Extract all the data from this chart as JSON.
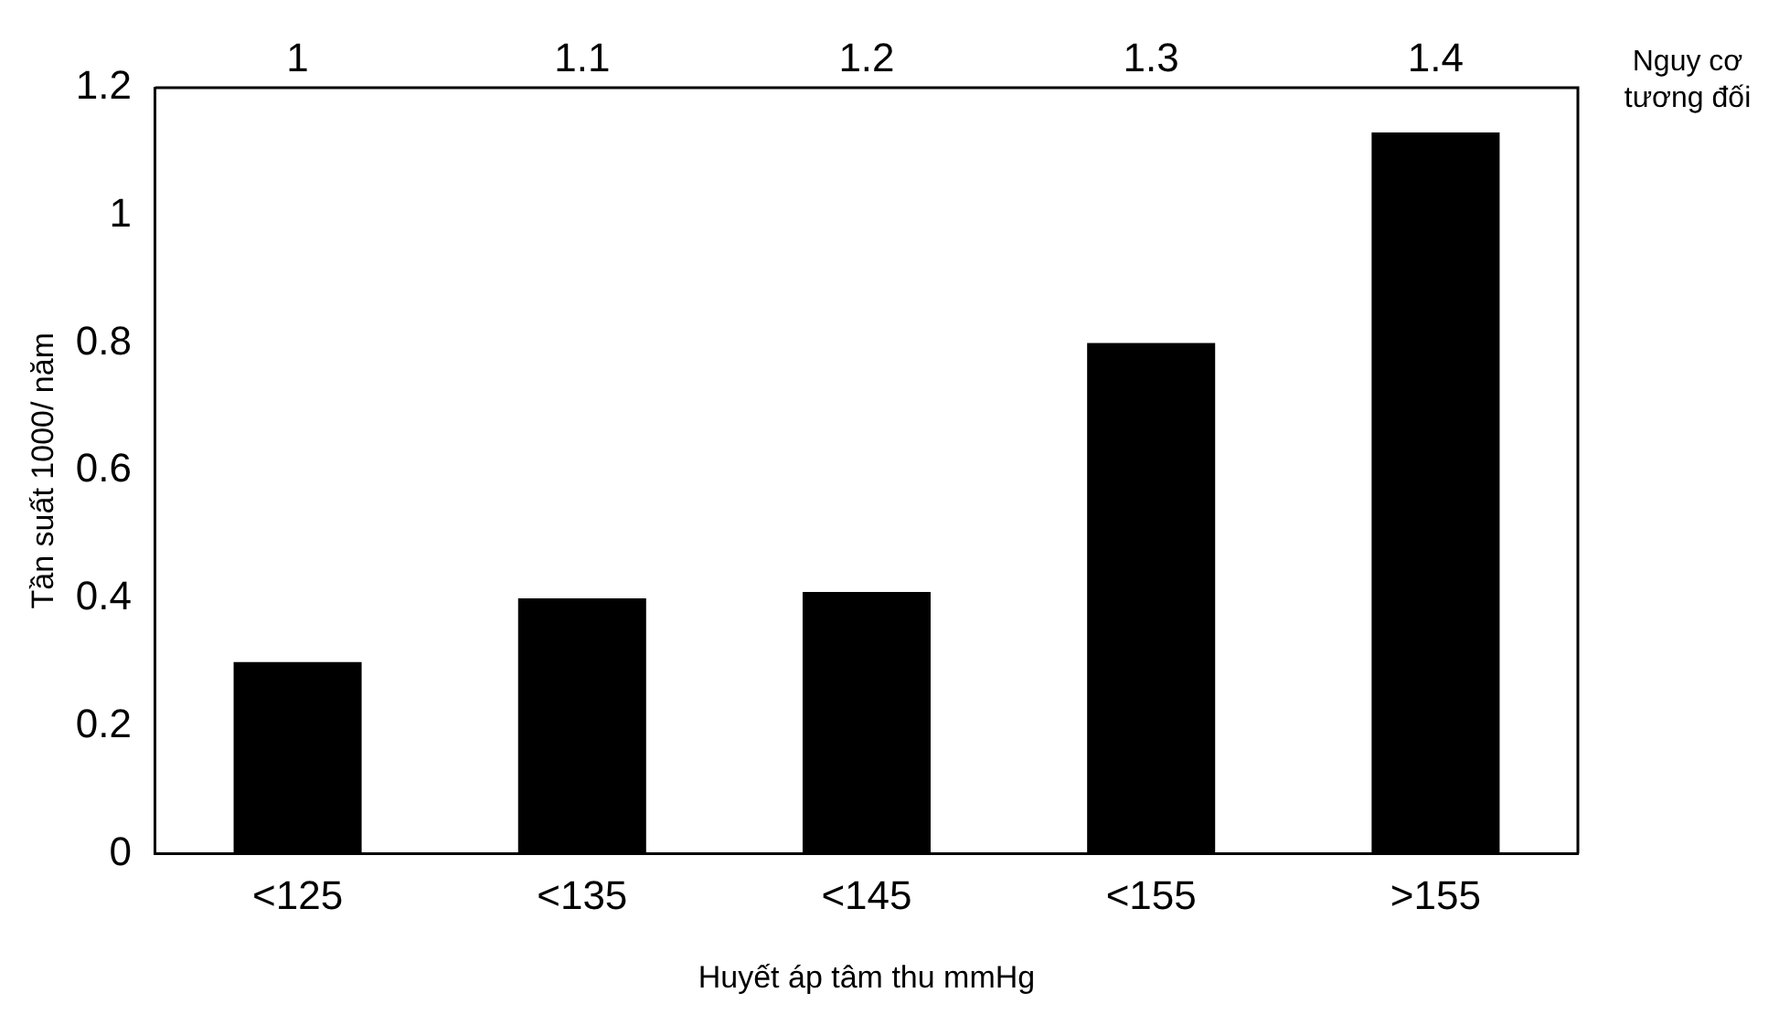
{
  "chart_data": {
    "type": "bar",
    "xlabel": "Huyết áp tâm thu mmHg",
    "ylabel": "Tần suất 1000/ năm",
    "categories": [
      "<125",
      "<135",
      "<145",
      "<155",
      ">155"
    ],
    "values": [
      0.3,
      0.4,
      0.41,
      0.8,
      1.13
    ],
    "color": "#000000",
    "ylim": [
      0,
      1.2
    ],
    "yticks": [
      0,
      0.2,
      0.4,
      0.6,
      0.8,
      1,
      1.2
    ],
    "grid": false,
    "legend": false,
    "x2label": "Nguy cơ tương đối",
    "annotations": [
      "1",
      "1.1",
      "1.2",
      "1.3",
      "1.4"
    ]
  }
}
